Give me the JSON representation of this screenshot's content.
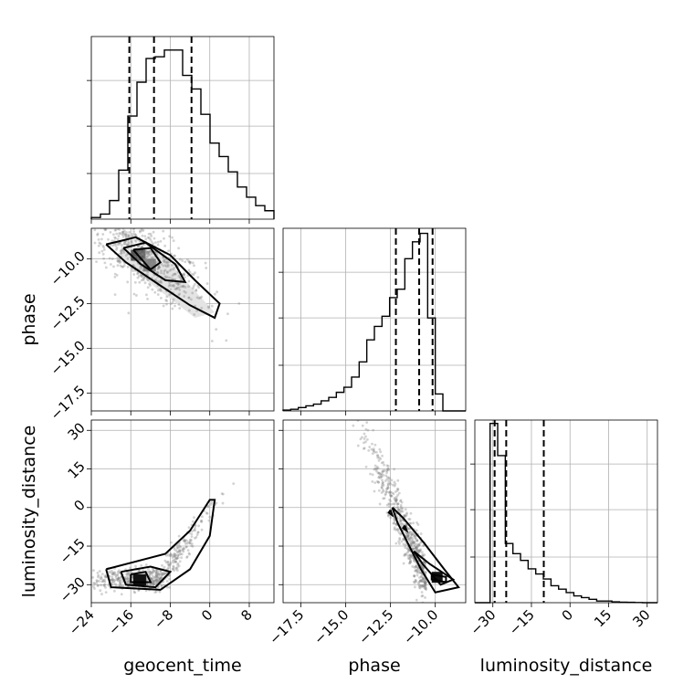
{
  "chart_data": {
    "type": "corner",
    "parameters": [
      "geocent_time",
      "phase",
      "luminosity_distance"
    ],
    "ranges": {
      "geocent_time": [
        -24,
        13
      ],
      "phase": [
        -18.5,
        -8.3
      ],
      "luminosity_distance": [
        -37,
        34
      ]
    },
    "ticks": {
      "geocent_time": [
        -24,
        -16,
        -8,
        0,
        8
      ],
      "phase_x": [
        -17.5,
        -15.0,
        -12.5,
        -10.0
      ],
      "phase_y": [
        -10.0,
        -12.5,
        -15.0,
        -17.5
      ],
      "luminosity_distance_x": [
        -30,
        -15,
        0,
        15,
        30
      ],
      "luminosity_distance_y": [
        30,
        15,
        0,
        -15,
        -30
      ]
    },
    "tick_labels": {
      "geocent_time": [
        "−24",
        "−16",
        "−8",
        "0",
        "8"
      ],
      "phase_x": [
        "−17.5",
        "−15.0",
        "−12.5",
        "−10.0"
      ],
      "phase_y": [
        "−10.0",
        "−12.5",
        "−15.0",
        "−17.5"
      ],
      "luminosity_distance_x": [
        "−30",
        "−15",
        "0",
        "15",
        "30"
      ],
      "luminosity_distance_y": [
        "30",
        "15",
        "0",
        "−15",
        "−30"
      ]
    },
    "axis_labels": {
      "x": [
        "geocent_time",
        "phase",
        "luminosity_distance"
      ],
      "y": [
        "",
        "phase",
        "luminosity_distance"
      ]
    },
    "histograms": {
      "geocent_time": {
        "edges_start": -24,
        "bin_width": 1.85,
        "counts": [
          0.01,
          0.03,
          0.11,
          0.29,
          0.61,
          0.81,
          0.95,
          0.96,
          1.0,
          1.0,
          0.85,
          0.77,
          0.62,
          0.45,
          0.37,
          0.28,
          0.19,
          0.13,
          0.08,
          0.05,
          0.03,
          0.01,
          0.005,
          0
        ]
      },
      "phase": {
        "edges_start": -18.5,
        "bin_width": 0.425,
        "counts": [
          0.005,
          0.01,
          0.02,
          0.03,
          0.04,
          0.06,
          0.08,
          0.11,
          0.14,
          0.2,
          0.29,
          0.42,
          0.5,
          0.56,
          0.67,
          0.72,
          0.9,
          1.0,
          1.05,
          0.55,
          0.1,
          0,
          0,
          0
        ]
      },
      "luminosity_distance": {
        "edges_start": -37,
        "bin_width": 2.96,
        "counts": [
          0,
          0,
          1.06,
          0.87,
          0.35,
          0.29,
          0.25,
          0.2,
          0.17,
          0.14,
          0.1,
          0.08,
          0.06,
          0.04,
          0.03,
          0.02,
          0.01,
          0.01,
          0.005,
          0.003,
          0.002,
          0.001,
          0,
          0
        ]
      }
    },
    "quantiles": {
      "geocent_time": [
        -16.3,
        -11.3,
        -3.7
      ],
      "phase": [
        -12.2,
        -10.9,
        -10.15
      ],
      "luminosity_distance": [
        -29.3,
        -24.8,
        -10.2
      ]
    },
    "grid": true,
    "colors": {
      "points": "#808080",
      "lines": "#000000"
    }
  }
}
